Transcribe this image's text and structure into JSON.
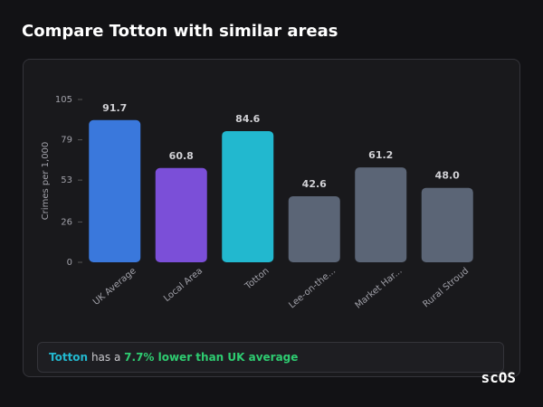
{
  "header": {
    "title": "Compare Totton with similar areas"
  },
  "chart_data": {
    "type": "bar",
    "y_label": "Crimes per 1,000",
    "categories": [
      "UK Average",
      "Local Area",
      "Totton",
      "Lee-on-the...",
      "Market Har...",
      "Rural Stroud"
    ],
    "values": [
      91.7,
      60.8,
      84.6,
      42.6,
      61.2,
      48.0
    ],
    "value_labels": [
      "91.7",
      "60.8",
      "84.6",
      "42.6",
      "61.2",
      "48.0"
    ],
    "colors": [
      "#3a78dc",
      "#7b4fd8",
      "#22b8cf",
      "#5b6576",
      "#5b6576",
      "#5b6576"
    ],
    "ylim": [
      0,
      105
    ],
    "yticks": [
      0,
      26,
      53,
      79,
      105
    ]
  },
  "summary": {
    "area": "Totton",
    "text": "has a",
    "highlight": "7.7% lower than UK average"
  },
  "logo": "scOS"
}
